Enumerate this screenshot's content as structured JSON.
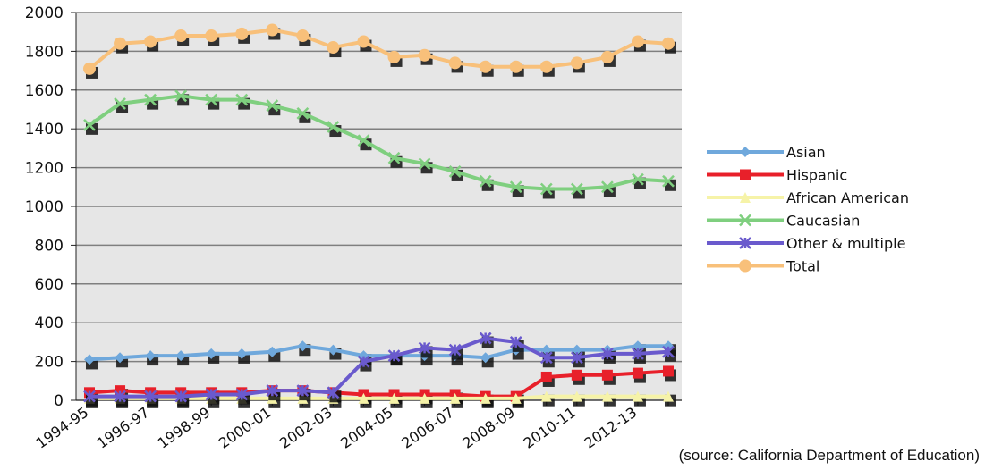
{
  "chart_data": {
    "type": "line",
    "title": "",
    "xlabel": "",
    "ylabel": "",
    "ylim": [
      0,
      2000
    ],
    "yticks": [
      0,
      200,
      400,
      600,
      800,
      1000,
      1200,
      1400,
      1600,
      1800,
      2000
    ],
    "x": [
      "1994-95",
      "1995-96",
      "1996-97",
      "1997-98",
      "1998-99",
      "1999-00",
      "2000-01",
      "2001-02",
      "2002-03",
      "2003-04",
      "2004-05",
      "2005-06",
      "2006-07",
      "2007-08",
      "2008-09",
      "2009-10",
      "2010-11",
      "2011-12",
      "2012-13",
      "2013-14"
    ],
    "x_tick_labels_shown": [
      "1994-95",
      "1996-97",
      "1998-99",
      "2000-01",
      "2002-03",
      "2004-05",
      "2006-07",
      "2008-09",
      "2010-11",
      "2012-13"
    ],
    "grid": true,
    "legend_position": "right",
    "series": [
      {
        "name": "Asian",
        "color": "#6fa8dc",
        "marker": "diamond",
        "values": [
          210,
          220,
          230,
          230,
          240,
          240,
          250,
          280,
          260,
          230,
          230,
          230,
          230,
          220,
          260,
          260,
          260,
          260,
          280,
          280
        ]
      },
      {
        "name": "Hispanic",
        "color": "#e8202a",
        "marker": "square",
        "values": [
          40,
          50,
          40,
          40,
          40,
          40,
          50,
          50,
          40,
          30,
          30,
          30,
          30,
          20,
          20,
          120,
          130,
          130,
          140,
          150
        ]
      },
      {
        "name": "African American",
        "color": "#f6f3a8",
        "marker": "triangle",
        "values": [
          10,
          10,
          10,
          10,
          10,
          10,
          10,
          10,
          10,
          10,
          10,
          10,
          10,
          10,
          10,
          20,
          20,
          20,
          20,
          20
        ]
      },
      {
        "name": "Caucasian",
        "color": "#7fcf7f",
        "marker": "x",
        "values": [
          1420,
          1530,
          1550,
          1570,
          1550,
          1550,
          1520,
          1480,
          1410,
          1340,
          1250,
          1220,
          1180,
          1130,
          1100,
          1090,
          1090,
          1100,
          1140,
          1130
        ]
      },
      {
        "name": "Other & multiple",
        "color": "#6a5acd",
        "marker": "star",
        "values": [
          20,
          20,
          20,
          20,
          30,
          30,
          50,
          50,
          40,
          200,
          230,
          270,
          260,
          320,
          300,
          220,
          220,
          240,
          240,
          250
        ]
      },
      {
        "name": "Total",
        "color": "#f8c07a",
        "marker": "circle",
        "values": [
          1710,
          1840,
          1850,
          1880,
          1880,
          1890,
          1910,
          1880,
          1820,
          1850,
          1770,
          1780,
          1740,
          1720,
          1720,
          1720,
          1740,
          1770,
          1850,
          1840
        ]
      }
    ],
    "source_note": "(source: California Department of Education)",
    "colors": {
      "plot_background": "#e6e6e6",
      "gridline": "#7f7f7f",
      "shadow": "#111111"
    }
  }
}
